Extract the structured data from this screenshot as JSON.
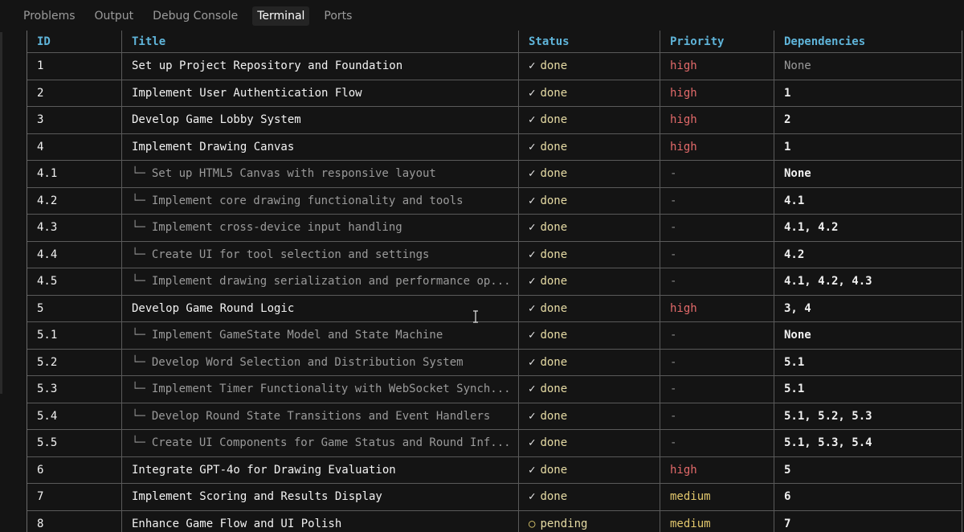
{
  "tabs": [
    {
      "label": "Problems",
      "active": false
    },
    {
      "label": "Output",
      "active": false
    },
    {
      "label": "Debug Console",
      "active": false
    },
    {
      "label": "Terminal",
      "active": true
    },
    {
      "label": "Ports",
      "active": false
    }
  ],
  "table": {
    "headers": {
      "id": "ID",
      "title": "Title",
      "status": "Status",
      "priority": "Priority",
      "dependencies": "Dependencies"
    },
    "rows": [
      {
        "id": "1",
        "title": "Set up Project Repository and Foundation",
        "sub": false,
        "status": "done",
        "priority": "high",
        "deps": "None"
      },
      {
        "id": "2",
        "title": "Implement User Authentication Flow",
        "sub": false,
        "status": "done",
        "priority": "high",
        "deps": "1"
      },
      {
        "id": "3",
        "title": "Develop Game Lobby System",
        "sub": false,
        "status": "done",
        "priority": "high",
        "deps": "2"
      },
      {
        "id": "4",
        "title": "Implement Drawing Canvas",
        "sub": false,
        "status": "done",
        "priority": "high",
        "deps": "1"
      },
      {
        "id": "4.1",
        "title": "Set up HTML5 Canvas with responsive layout",
        "sub": true,
        "status": "done",
        "priority": "-",
        "deps": "None"
      },
      {
        "id": "4.2",
        "title": "Implement core drawing functionality and tools",
        "sub": true,
        "status": "done",
        "priority": "-",
        "deps": "4.1"
      },
      {
        "id": "4.3",
        "title": "Implement cross-device input handling",
        "sub": true,
        "status": "done",
        "priority": "-",
        "deps": "4.1, 4.2"
      },
      {
        "id": "4.4",
        "title": "Create UI for tool selection and settings",
        "sub": true,
        "status": "done",
        "priority": "-",
        "deps": "4.2"
      },
      {
        "id": "4.5",
        "title": "Implement drawing serialization and performance op...",
        "sub": true,
        "status": "done",
        "priority": "-",
        "deps": "4.1, 4.2, 4.3"
      },
      {
        "id": "5",
        "title": "Develop Game Round Logic",
        "sub": false,
        "status": "done",
        "priority": "high",
        "deps": "3, 4"
      },
      {
        "id": "5.1",
        "title": "Implement GameState Model and State Machine",
        "sub": true,
        "status": "done",
        "priority": "-",
        "deps": "None"
      },
      {
        "id": "5.2",
        "title": "Develop Word Selection and Distribution System",
        "sub": true,
        "status": "done",
        "priority": "-",
        "deps": "5.1"
      },
      {
        "id": "5.3",
        "title": "Implement Timer Functionality with WebSocket Synch...",
        "sub": true,
        "status": "done",
        "priority": "-",
        "deps": "5.1"
      },
      {
        "id": "5.4",
        "title": "Develop Round State Transitions and Event Handlers",
        "sub": true,
        "status": "done",
        "priority": "-",
        "deps": "5.1, 5.2, 5.3"
      },
      {
        "id": "5.5",
        "title": "Create UI Components for Game Status and Round Inf...",
        "sub": true,
        "status": "done",
        "priority": "-",
        "deps": "5.1, 5.3, 5.4"
      },
      {
        "id": "6",
        "title": "Integrate GPT-4o for Drawing Evaluation",
        "sub": false,
        "status": "done",
        "priority": "high",
        "deps": "5"
      },
      {
        "id": "7",
        "title": "Implement Scoring and Results Display",
        "sub": false,
        "status": "done",
        "priority": "medium",
        "deps": "6"
      },
      {
        "id": "8",
        "title": "Enhance Game Flow and UI Polish",
        "sub": false,
        "status": "pending",
        "priority": "medium",
        "deps": "7"
      }
    ]
  },
  "symbols": {
    "done_mark": "✓",
    "pending_mark": "○",
    "tree_branch": "└─"
  },
  "colors": {
    "header": "#5fb4d9",
    "high": "#e36a6a",
    "medium": "#e2c76c"
  }
}
